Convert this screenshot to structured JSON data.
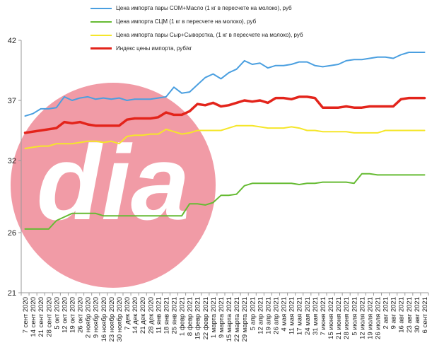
{
  "chart_data": {
    "type": "line",
    "title": "",
    "xlabel": "",
    "ylabel": "",
    "ylim": [
      21,
      42
    ],
    "yticks": [
      21,
      26,
      32,
      37,
      42
    ],
    "grid": false,
    "legend_position": "top",
    "x": [
      "7 сент 2020",
      "14 сент 2020",
      "21 сент 2020",
      "28 сент 2020",
      "5 окт 2020",
      "12 окт 2020",
      "19 окт 2020",
      "26 окт 2020",
      "2 ноябр 2020",
      "9 ноябр 2020",
      "16 ноябр 2020",
      "23 ноябр 2020",
      "30 ноябр 2020",
      "7 дек 2020",
      "14 дек 2020",
      "21 дек 2020",
      "28 дек 2020",
      "11 янв 2021",
      "18 янв 2021",
      "25 янв 2021",
      "1 февр 2021",
      "8 февр 2021",
      "15 февр 2021",
      "22 февр 2021",
      "1 марта 2021",
      "9 марта 2021",
      "15 марта 2021",
      "22 марта 2021",
      "29 марта 2021",
      "5 апр 2021",
      "12 апр 2021",
      "19 апр 2021",
      "26 апр 2021",
      "4 мая 2021",
      "11 мая 2021",
      "17 мая 2021",
      "24 мая 2021",
      "31 мая 2021",
      "7 июня 2021",
      "15 июня 2021",
      "21 июня 2021",
      "28 июня 2021",
      "5 июля 2021",
      "12 июля 2021",
      "19 июля 2021",
      "26 июля 2021",
      "2 авг 2021",
      "9 авг 2021",
      "16 авг 2021",
      "23 авг 2021",
      "30 авг 2021",
      "6 сент 2021"
    ],
    "series": [
      {
        "name": "Цена импорта пары СОМ+Масло  (1 кг в пересчете на молоко), руб",
        "color": "#4a9fe0",
        "width": 2,
        "values": [
          35.7,
          35.9,
          36.3,
          36.3,
          36.4,
          37.3,
          37.0,
          37.2,
          37.3,
          37.1,
          37.2,
          37.1,
          37.2,
          37.0,
          37.1,
          37.1,
          37.1,
          37.2,
          37.3,
          38.1,
          37.6,
          37.7,
          38.3,
          38.9,
          39.2,
          38.8,
          39.3,
          39.6,
          40.3,
          40.0,
          40.1,
          39.7,
          39.9,
          39.9,
          40.0,
          40.2,
          40.2,
          39.9,
          39.8,
          39.9,
          40.0,
          40.3,
          40.4,
          40.4,
          40.5,
          40.6,
          40.6,
          40.5,
          40.8,
          41.0,
          41.0,
          41.0
        ]
      },
      {
        "name": "Цена импорта СЦМ  (1 кг в пересчете на молоко), руб",
        "color": "#66bb33",
        "width": 2,
        "values": [
          26.3,
          26.3,
          26.3,
          26.3,
          27.0,
          27.3,
          27.6,
          27.6,
          27.6,
          27.6,
          27.4,
          27.4,
          27.4,
          27.4,
          27.4,
          27.4,
          27.4,
          27.4,
          27.4,
          27.4,
          27.4,
          28.4,
          28.4,
          28.3,
          28.5,
          29.1,
          29.1,
          29.2,
          29.9,
          30.1,
          30.1,
          30.1,
          30.1,
          30.1,
          30.1,
          30.0,
          30.1,
          30.1,
          30.2,
          30.2,
          30.2,
          30.2,
          30.1,
          30.9,
          30.9,
          30.8,
          30.8,
          30.8,
          30.8,
          30.8,
          30.8,
          30.8
        ]
      },
      {
        "name": "Цена импорта пары Сыр+Сыворотка,  (1 кг в пересчете на молоко), руб",
        "color": "#f5e62a",
        "width": 2,
        "values": [
          33.0,
          33.1,
          33.2,
          33.2,
          33.4,
          33.4,
          33.4,
          33.5,
          33.6,
          33.6,
          33.5,
          33.6,
          33.4,
          34.0,
          34.1,
          34.1,
          34.2,
          34.2,
          34.6,
          34.4,
          34.2,
          34.3,
          34.5,
          34.5,
          34.5,
          34.5,
          34.7,
          34.9,
          34.9,
          34.9,
          34.8,
          34.7,
          34.7,
          34.7,
          34.8,
          34.7,
          34.5,
          34.5,
          34.4,
          34.4,
          34.4,
          34.4,
          34.3,
          34.3,
          34.3,
          34.3,
          34.5,
          34.5,
          34.5,
          34.5,
          34.5,
          34.5
        ]
      },
      {
        "name": "Индекс цены импорта, руб/кг",
        "color": "#e3241b",
        "width": 3.5,
        "values": [
          34.3,
          34.4,
          34.5,
          34.6,
          34.7,
          35.2,
          35.1,
          35.2,
          35.0,
          34.9,
          34.9,
          34.9,
          34.9,
          35.4,
          35.5,
          35.5,
          35.5,
          35.6,
          36.0,
          35.8,
          35.8,
          36.1,
          36.7,
          36.6,
          36.8,
          36.5,
          36.6,
          36.8,
          37.0,
          36.9,
          37.0,
          36.8,
          37.2,
          37.2,
          37.1,
          37.3,
          37.3,
          37.2,
          36.4,
          36.4,
          36.4,
          36.5,
          36.4,
          36.4,
          36.5,
          36.5,
          36.5,
          36.5,
          37.1,
          37.2,
          37.2,
          37.2
        ]
      }
    ]
  },
  "watermark": {
    "text": "dia",
    "circle_color": "#ef8a96",
    "letter_color": "#ffffff"
  }
}
